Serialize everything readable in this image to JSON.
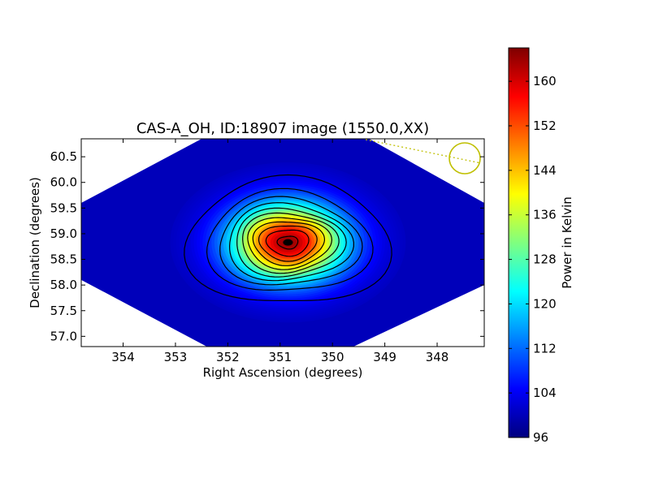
{
  "chart_data": {
    "type": "heatmap",
    "title": "CAS-A_OH, ID:18907 image (1550.0,XX)",
    "xlabel": "Right Ascension (degrees)",
    "ylabel": "Declination (degrees)",
    "xlim": [
      354.8,
      347.1
    ],
    "ylim": [
      56.8,
      60.85
    ],
    "xticks": [
      354,
      353,
      352,
      351,
      350,
      349,
      348
    ],
    "yticks": [
      57.0,
      57.5,
      58.0,
      58.5,
      59.0,
      59.5,
      60.0,
      60.5
    ],
    "peak": {
      "ra": 350.85,
      "dec": 58.83,
      "value": 165
    },
    "background_value": 100,
    "contour_levels": [
      103,
      109,
      115,
      121,
      127,
      133,
      139,
      145,
      151,
      157,
      163
    ],
    "colorbar": {
      "label": "Power in Kelvin",
      "range": [
        96,
        166
      ],
      "ticks": [
        96,
        104,
        112,
        120,
        128,
        136,
        144,
        152,
        160
      ],
      "colormap": "jet"
    },
    "beam_marker": {
      "color": "#bfbf00"
    },
    "grid": false
  }
}
